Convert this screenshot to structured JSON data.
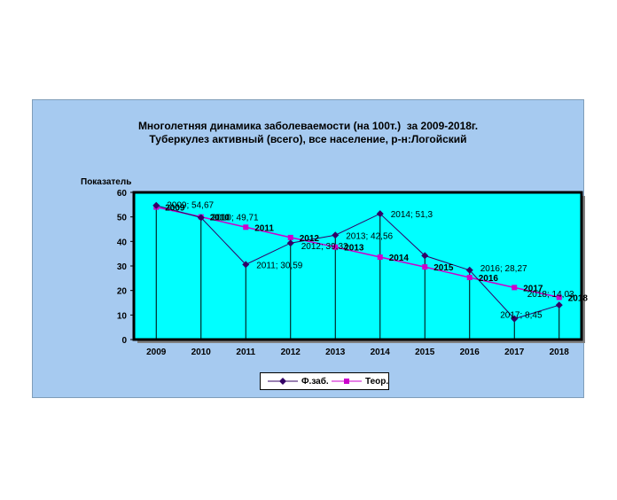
{
  "title_line1": "Многолетняя динамика заболеваемости (на 100т.)  за 2009-2018г.",
  "title_line2": "Туберкулез активный (всего), все население, р-н:Логойский",
  "chart_data": {
    "type": "line",
    "ylabel": "Показатель",
    "ylim": [
      0,
      60
    ],
    "yticks": [
      "0",
      "10",
      "20",
      "30",
      "40",
      "50",
      "60"
    ],
    "categories": [
      "2009",
      "2010",
      "2011",
      "2012",
      "2013",
      "2014",
      "2015",
      "2016",
      "2017",
      "2018"
    ],
    "series": [
      {
        "name": "Ф.заб.",
        "color": "#330066",
        "values": [
          54.67,
          49.71,
          30.59,
          39.32,
          42.56,
          51.3,
          34.2,
          28.27,
          8.45,
          14.03
        ],
        "labels": [
          "2009; 54,67",
          "2010; 49,71",
          "2011; 30,59",
          "2012; 39,32",
          "2013; 42,56",
          "2014; 51,3",
          "",
          "2016; 28,27",
          "2017; 8,45",
          "2018; 14,03"
        ]
      },
      {
        "name": "Теор.",
        "color": "#cc00cc",
        "values": [
          54.0,
          50.0,
          45.8,
          41.6,
          37.7,
          33.6,
          29.6,
          25.3,
          21.2,
          17.2
        ],
        "labels": [
          "2009",
          "2010",
          "2011",
          "2012",
          "2013",
          "2014",
          "2015",
          "2016",
          "2017",
          "2018"
        ]
      }
    ],
    "plot_background": "#00ffff",
    "legend": "bottom"
  }
}
